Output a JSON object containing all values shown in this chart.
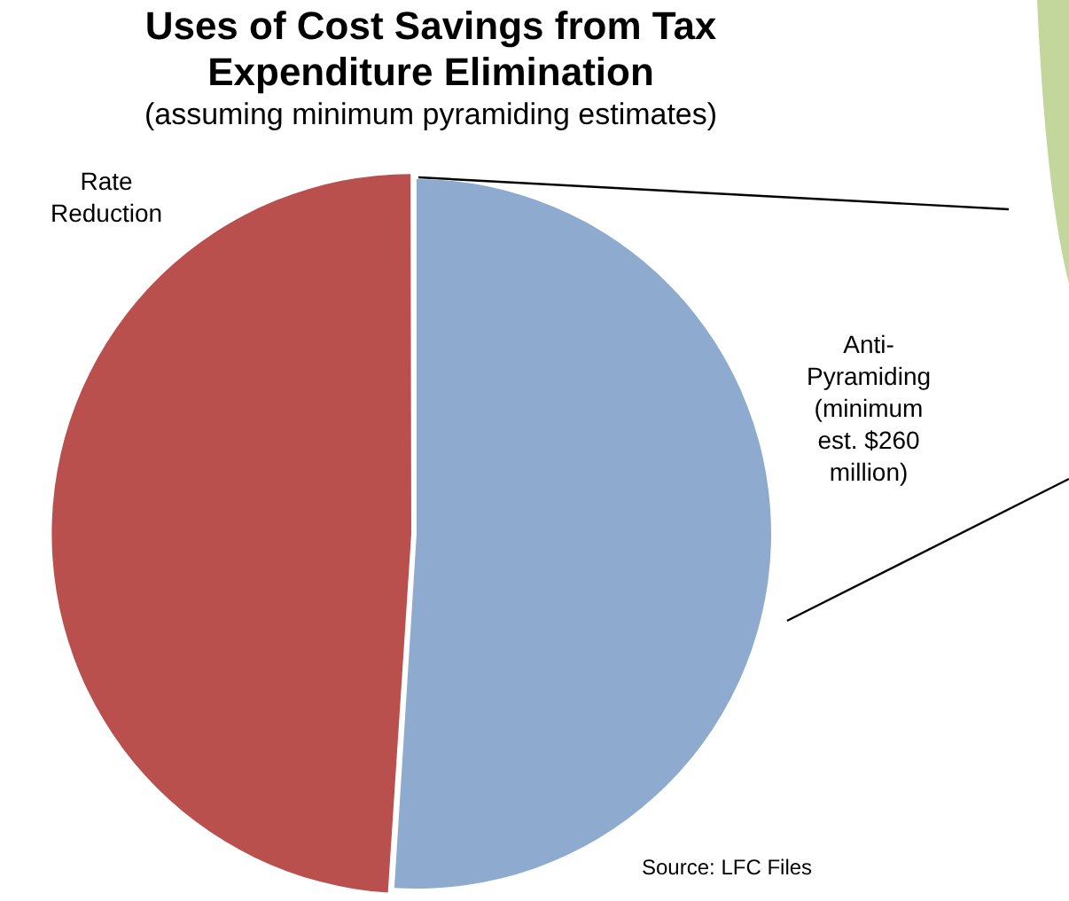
{
  "chart_data": {
    "type": "pie",
    "title": "Uses of Cost Savings from Tax Expenditure Elimination",
    "subtitle": "(assuming minimum pyramiding estimates)",
    "categories": [
      "Anti-Pyramiding (minimum est. $260 million)",
      "Rate Reduction"
    ],
    "values": [
      51,
      49
    ],
    "colors": [
      "#8eaacf",
      "#b9504e"
    ],
    "annotations": [
      "Source: LFC Files"
    ]
  }
}
